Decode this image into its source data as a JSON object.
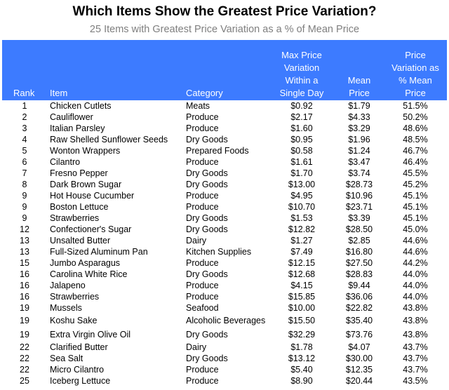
{
  "title": "Which Items Show the Greatest Price Variation?",
  "subtitle": "25 Items with Greatest Price Variation as a % of Mean Price",
  "columns": {
    "rank": "Rank",
    "item": "Item",
    "category": "Category",
    "max_variation": [
      "Max Price",
      "Variation",
      "Within a",
      "Single Day"
    ],
    "mean_price": [
      "Mean",
      "Price"
    ],
    "pct_variation": [
      "Price",
      "Variation as",
      "% Mean",
      "Price"
    ]
  },
  "rows": [
    {
      "rank": "1",
      "item": "Chicken Cutlets",
      "category": "Meats",
      "max": "$0.92",
      "mean": "$1.79",
      "pct": "51.5%"
    },
    {
      "rank": "2",
      "item": "Cauliflower",
      "category": "Produce",
      "max": "$2.17",
      "mean": "$4.33",
      "pct": "50.2%"
    },
    {
      "rank": "3",
      "item": "Italian Parsley",
      "category": "Produce",
      "max": "$1.60",
      "mean": "$3.29",
      "pct": "48.6%"
    },
    {
      "rank": "4",
      "item": "Raw Shelled Sunflower Seeds",
      "category": "Dry Goods",
      "max": "$0.95",
      "mean": "$1.96",
      "pct": "48.5%"
    },
    {
      "rank": "5",
      "item": "Wonton Wrappers",
      "category": "Prepared Foods",
      "max": "$0.58",
      "mean": "$1.24",
      "pct": "46.7%"
    },
    {
      "rank": "6",
      "item": "Cilantro",
      "category": "Produce",
      "max": "$1.61",
      "mean": "$3.47",
      "pct": "46.4%"
    },
    {
      "rank": "7",
      "item": "Fresno Pepper",
      "category": "Dry Goods",
      "max": "$1.70",
      "mean": "$3.74",
      "pct": "45.5%"
    },
    {
      "rank": "8",
      "item": "Dark Brown Sugar",
      "category": "Dry Goods",
      "max": "$13.00",
      "mean": "$28.73",
      "pct": "45.2%"
    },
    {
      "rank": "9",
      "item": "Hot House Cucumber",
      "category": "Produce",
      "max": "$4.95",
      "mean": "$10.96",
      "pct": "45.1%"
    },
    {
      "rank": "9",
      "item": "Boston Lettuce",
      "category": "Produce",
      "max": "$10.70",
      "mean": "$23.71",
      "pct": "45.1%"
    },
    {
      "rank": "9",
      "item": "Strawberries",
      "category": "Dry Goods",
      "max": "$1.53",
      "mean": "$3.39",
      "pct": "45.1%"
    },
    {
      "rank": "12",
      "item": "Confectioner's Sugar",
      "category": "Dry Goods",
      "max": "$12.82",
      "mean": "$28.50",
      "pct": "45.0%"
    },
    {
      "rank": "13",
      "item": "Unsalted Butter",
      "category": "Dairy",
      "max": "$1.27",
      "mean": "$2.85",
      "pct": "44.6%"
    },
    {
      "rank": "13",
      "item": "Full-Sized Aluminum Pan",
      "category": "Kitchen Supplies",
      "max": "$7.49",
      "mean": "$16.80",
      "pct": "44.6%"
    },
    {
      "rank": "15",
      "item": "Jumbo Asparagus",
      "category": "Produce",
      "max": "$12.15",
      "mean": "$27.50",
      "pct": "44.2%"
    },
    {
      "rank": "16",
      "item": "Carolina White Rice",
      "category": "Dry Goods",
      "max": "$12.68",
      "mean": "$28.83",
      "pct": "44.0%"
    },
    {
      "rank": "16",
      "item": "Jalapeno",
      "category": "Produce",
      "max": "$4.15",
      "mean": "$9.44",
      "pct": "44.0%"
    },
    {
      "rank": "16",
      "item": "Strawberries",
      "category": "Produce",
      "max": "$15.85",
      "mean": "$36.06",
      "pct": "44.0%"
    },
    {
      "rank": "19",
      "item": "Mussels",
      "category": "Seafood",
      "max": "$10.00",
      "mean": "$22.82",
      "pct": "43.8%"
    },
    {
      "rank": "19",
      "item": "Koshu Sake",
      "category": "Alcoholic Beverages",
      "max": "$15.50",
      "mean": "$35.40",
      "pct": "43.8%",
      "tall": true
    },
    {
      "rank": "19",
      "item": "Extra Virgin Olive Oil",
      "category": "Dry Goods",
      "max": "$32.29",
      "mean": "$73.76",
      "pct": "43.8%",
      "tall": true
    },
    {
      "rank": "22",
      "item": "Clarified Butter",
      "category": "Dairy",
      "max": "$1.78",
      "mean": "$4.07",
      "pct": "43.7%"
    },
    {
      "rank": "22",
      "item": "Sea Salt",
      "category": "Dry Goods",
      "max": "$13.12",
      "mean": "$30.00",
      "pct": "43.7%"
    },
    {
      "rank": "22",
      "item": "Micro Cilantro",
      "category": "Produce",
      "max": "$5.40",
      "mean": "$12.35",
      "pct": "43.7%"
    },
    {
      "rank": "25",
      "item": "Iceberg Lettuce",
      "category": "Produce",
      "max": "$8.90",
      "mean": "$20.44",
      "pct": "43.5%"
    }
  ],
  "colors": {
    "header_bg": "#3d7bff",
    "header_text": "#ffffff",
    "subtitle": "#7f7f7f"
  }
}
